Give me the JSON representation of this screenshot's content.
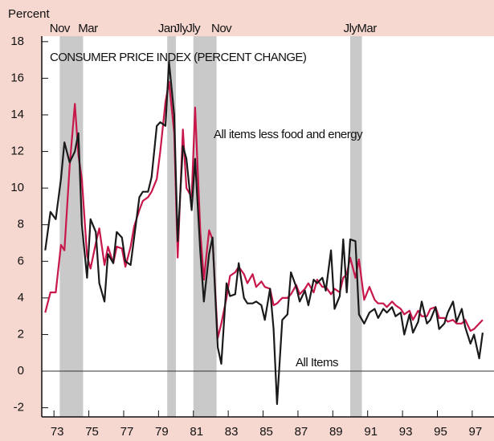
{
  "chart_data": {
    "type": "line",
    "title": "CONSUMER PRICE INDEX (PERCENT CHANGE)",
    "ylabel": "Percent",
    "x": [
      73.0,
      73.3,
      73.6,
      73.9,
      74.1,
      74.4,
      74.7,
      74.9,
      75.1,
      75.4,
      75.6,
      75.9,
      76.1,
      76.4,
      76.6,
      76.9,
      77.1,
      77.4,
      77.6,
      77.9,
      78.1,
      78.4,
      78.6,
      78.9,
      79.1,
      79.4,
      79.6,
      79.9,
      80.1,
      80.4,
      80.6,
      80.9,
      81.1,
      81.4,
      81.6,
      81.9,
      82.1,
      82.4,
      82.6,
      82.9,
      83.1,
      83.4,
      83.6,
      83.9,
      84.1,
      84.4,
      84.6,
      84.9,
      85.1,
      85.4,
      85.6,
      85.9,
      86.1,
      86.3,
      86.6,
      86.9,
      87.1,
      87.4,
      87.6,
      87.9,
      88.1,
      88.4,
      88.6,
      88.9,
      89.1,
      89.4,
      89.6,
      89.9,
      90.1,
      90.3,
      90.5,
      90.8,
      91.0,
      91.3,
      91.6,
      91.9,
      92.1,
      92.4,
      92.6,
      92.9,
      93.1,
      93.4,
      93.6,
      93.9,
      94.1,
      94.4,
      94.6,
      94.9,
      95.1,
      95.4,
      95.6,
      95.9,
      96.1,
      96.4,
      96.6,
      96.9,
      97.1,
      97.4,
      97.6,
      97.9,
      98.1
    ],
    "series": [
      {
        "name": "All Items",
        "color": "#1a1a1a",
        "values": [
          6.6,
          8.7,
          8.3,
          10.5,
          12.5,
          11.4,
          12.0,
          13.0,
          8.0,
          5.1,
          8.3,
          7.6,
          4.8,
          3.8,
          6.4,
          5.9,
          7.6,
          7.3,
          6.0,
          5.8,
          7.3,
          9.5,
          9.8,
          9.8,
          10.6,
          13.4,
          13.6,
          13.4,
          16.9,
          14.0,
          7.1,
          12.3,
          11.6,
          8.8,
          11.6,
          6.5,
          3.8,
          6.4,
          7.3,
          1.3,
          0.4,
          4.8,
          4.1,
          4.2,
          5.9,
          4.0,
          3.7,
          3.7,
          3.8,
          3.6,
          2.8,
          4.5,
          2.3,
          -1.8,
          2.8,
          3.1,
          5.4,
          4.6,
          3.8,
          4.4,
          3.6,
          5.0,
          4.8,
          5.1,
          4.4,
          6.6,
          3.4,
          4.1,
          7.2,
          4.3,
          7.2,
          7.1,
          3.1,
          2.6,
          3.2,
          3.4,
          2.9,
          3.4,
          3.2,
          3.5,
          3.0,
          3.2,
          2.0,
          3.1,
          2.1,
          2.7,
          3.8,
          2.6,
          2.8,
          3.5,
          2.3,
          2.6,
          3.2,
          3.8,
          2.7,
          3.4,
          2.4,
          1.5,
          2.0,
          0.7,
          2.1
        ]
      },
      {
        "name": "All items less food and energy",
        "color": "#c8174a",
        "values": [
          3.2,
          4.3,
          4.3,
          6.9,
          6.6,
          11.2,
          14.6,
          11.8,
          10.5,
          6.3,
          5.6,
          7.0,
          7.8,
          5.8,
          6.8,
          5.9,
          6.8,
          6.7,
          5.7,
          6.8,
          7.9,
          8.8,
          9.3,
          9.5,
          9.8,
          10.5,
          12.0,
          14.7,
          15.8,
          13.0,
          6.2,
          13.2,
          10.0,
          9.5,
          14.4,
          7.6,
          5.0,
          7.7,
          7.2,
          1.8,
          2.6,
          4.0,
          5.2,
          5.4,
          5.7,
          5.3,
          4.8,
          5.3,
          4.6,
          4.9,
          4.6,
          4.5,
          3.6,
          3.7,
          4.0,
          4.0,
          4.2,
          4.7,
          4.2,
          4.5,
          4.8,
          4.3,
          5.0,
          4.6,
          4.6,
          4.2,
          4.5,
          4.3,
          5.1,
          5.3,
          6.2,
          5.1,
          6.1,
          3.9,
          4.6,
          3.9,
          3.7,
          3.7,
          3.5,
          3.8,
          3.6,
          3.4,
          3.1,
          3.3,
          2.8,
          3.3,
          3.0,
          3.0,
          3.4,
          3.5,
          2.9,
          2.9,
          2.7,
          2.8,
          2.6,
          2.6,
          2.8,
          2.2,
          2.3,
          2.6,
          2.8
        ]
      }
    ],
    "recessions": [
      {
        "start": 73.83,
        "end": 75.17,
        "labels": [
          "Nov",
          "Mar"
        ]
      },
      {
        "start": 80.0,
        "end": 80.5,
        "labels": [
          "Jan",
          "Jly"
        ]
      },
      {
        "start": 81.5,
        "end": 82.83,
        "labels": [
          "Jly",
          "Nov"
        ]
      },
      {
        "start": 90.5,
        "end": 91.17,
        "labels": [
          "Jly",
          "Mar"
        ]
      }
    ],
    "xlim": [
      72.8,
      98.75
    ],
    "ylim": [
      -2.5,
      18.3
    ],
    "xticks": [
      {
        "value": 73.5,
        "label": "73"
      },
      {
        "value": 75.5,
        "label": "75"
      },
      {
        "value": 77.5,
        "label": "77"
      },
      {
        "value": 79.5,
        "label": "79"
      },
      {
        "value": 81.5,
        "label": "81"
      },
      {
        "value": 83.5,
        "label": "83"
      },
      {
        "value": 85.5,
        "label": "85"
      },
      {
        "value": 87.5,
        "label": "87"
      },
      {
        "value": 89.5,
        "label": "89"
      },
      {
        "value": 91.5,
        "label": "91"
      },
      {
        "value": 93.5,
        "label": "93"
      },
      {
        "value": 95.5,
        "label": "95"
      },
      {
        "value": 97.5,
        "label": "97"
      }
    ],
    "yticks": [
      -2,
      0,
      2,
      4,
      6,
      8,
      10,
      12,
      14,
      16,
      18
    ]
  }
}
